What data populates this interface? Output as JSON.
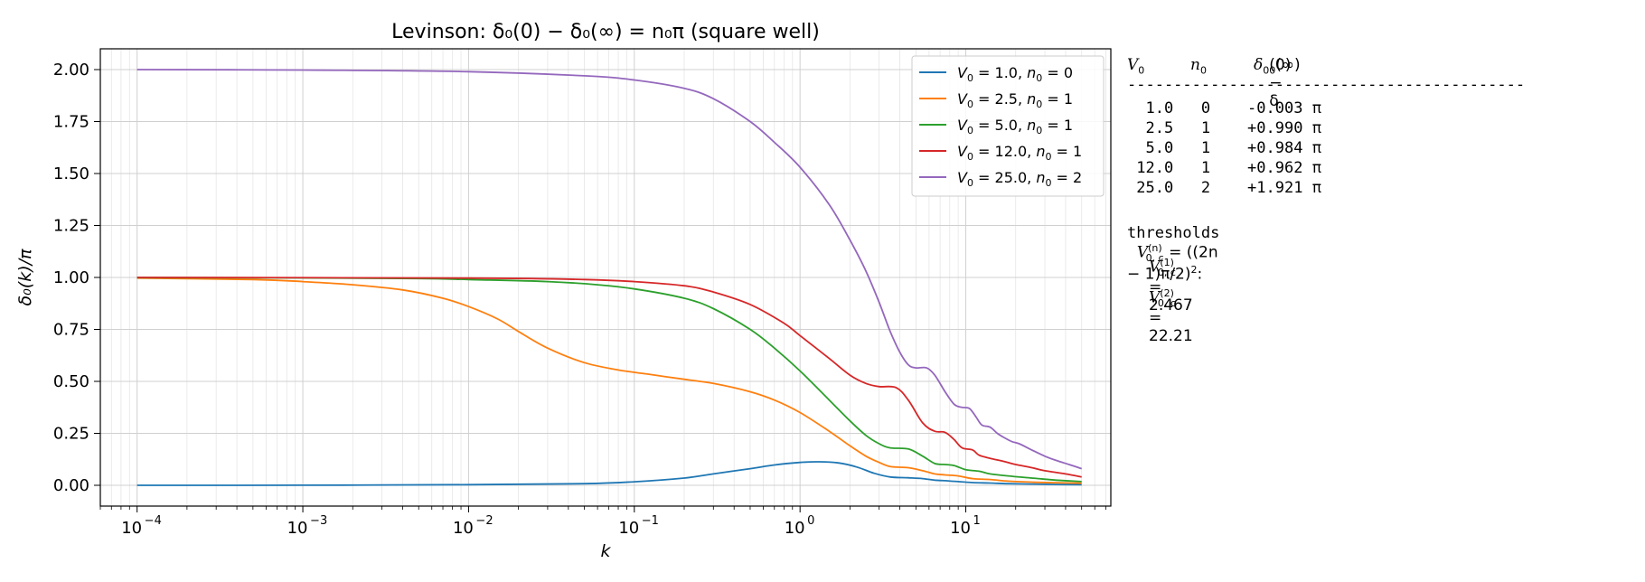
{
  "chart_data": {
    "type": "line",
    "title": "Levinson: δ₀(0) − δ₀(∞) = n₀π  (square well)",
    "xlabel": "k",
    "ylabel": "δ₀(k)/π",
    "xscale": "log",
    "xlim": [
      6e-05,
      75
    ],
    "ylim": [
      -0.1,
      2.1
    ],
    "grid": true,
    "legend_position": "top-right",
    "x_ticks": [
      {
        "value": 0.0001,
        "base": "10",
        "exp": "−4"
      },
      {
        "value": 0.001,
        "base": "10",
        "exp": "−3"
      },
      {
        "value": 0.01,
        "base": "10",
        "exp": "−2"
      },
      {
        "value": 0.1,
        "base": "10",
        "exp": "−1"
      },
      {
        "value": 1,
        "base": "10",
        "exp": "0"
      },
      {
        "value": 10,
        "base": "10",
        "exp": "1"
      }
    ],
    "y_ticks": [
      "0.00",
      "0.25",
      "0.50",
      "0.75",
      "1.00",
      "1.25",
      "1.50",
      "1.75",
      "2.00"
    ],
    "series": [
      {
        "name": "V₀ = 1.0, n₀ = 0",
        "color": "#1f77b4",
        "points": [
          [
            0.0001,
            0
          ],
          [
            0.001,
            0.0005
          ],
          [
            0.01,
            0.003
          ],
          [
            0.05,
            0.008
          ],
          [
            0.1,
            0.017
          ],
          [
            0.2,
            0.035
          ],
          [
            0.3,
            0.055
          ],
          [
            0.5,
            0.08
          ],
          [
            0.7,
            0.098
          ],
          [
            1.0,
            0.11
          ],
          [
            1.3,
            0.113
          ],
          [
            1.7,
            0.108
          ],
          [
            2.2,
            0.088
          ],
          [
            2.8,
            0.058
          ],
          [
            3.5,
            0.04
          ],
          [
            4.5,
            0.036
          ],
          [
            5.5,
            0.032
          ],
          [
            6.5,
            0.025
          ],
          [
            7.5,
            0.022
          ],
          [
            9,
            0.018
          ],
          [
            11,
            0.013
          ],
          [
            14,
            0.011
          ],
          [
            18,
            0.008
          ],
          [
            25,
            0.006
          ],
          [
            35,
            0.004
          ],
          [
            50,
            0.003
          ]
        ]
      },
      {
        "name": "V₀ = 2.5, n₀ = 1",
        "color": "#ff7f0e",
        "points": [
          [
            0.0001,
            0.997
          ],
          [
            0.0005,
            0.99
          ],
          [
            0.001,
            0.98
          ],
          [
            0.002,
            0.965
          ],
          [
            0.004,
            0.94
          ],
          [
            0.007,
            0.9
          ],
          [
            0.01,
            0.86
          ],
          [
            0.015,
            0.8
          ],
          [
            0.02,
            0.74
          ],
          [
            0.03,
            0.66
          ],
          [
            0.05,
            0.59
          ],
          [
            0.08,
            0.555
          ],
          [
            0.12,
            0.535
          ],
          [
            0.2,
            0.51
          ],
          [
            0.3,
            0.49
          ],
          [
            0.5,
            0.45
          ],
          [
            0.7,
            0.41
          ],
          [
            1.0,
            0.35
          ],
          [
            1.5,
            0.26
          ],
          [
            2,
            0.19
          ],
          [
            2.5,
            0.14
          ],
          [
            3,
            0.11
          ],
          [
            3.5,
            0.09
          ],
          [
            4.5,
            0.085
          ],
          [
            5.5,
            0.07
          ],
          [
            6.5,
            0.055
          ],
          [
            7.5,
            0.05
          ],
          [
            9,
            0.045
          ],
          [
            11,
            0.032
          ],
          [
            14,
            0.028
          ],
          [
            18,
            0.02
          ],
          [
            25,
            0.015
          ],
          [
            35,
            0.012
          ],
          [
            50,
            0.01
          ]
        ]
      },
      {
        "name": "V₀ = 5.0, n₀ = 1",
        "color": "#2ca02c",
        "points": [
          [
            0.0001,
            0.999
          ],
          [
            0.001,
            0.998
          ],
          [
            0.005,
            0.995
          ],
          [
            0.01,
            0.99
          ],
          [
            0.03,
            0.98
          ],
          [
            0.06,
            0.965
          ],
          [
            0.1,
            0.945
          ],
          [
            0.2,
            0.9
          ],
          [
            0.3,
            0.85
          ],
          [
            0.5,
            0.75
          ],
          [
            0.7,
            0.66
          ],
          [
            1.0,
            0.55
          ],
          [
            1.5,
            0.41
          ],
          [
            2.0,
            0.31
          ],
          [
            2.5,
            0.24
          ],
          [
            3.0,
            0.2
          ],
          [
            3.5,
            0.18
          ],
          [
            4.5,
            0.175
          ],
          [
            5.5,
            0.14
          ],
          [
            6.5,
            0.105
          ],
          [
            7.5,
            0.1
          ],
          [
            8.5,
            0.095
          ],
          [
            10,
            0.075
          ],
          [
            12,
            0.068
          ],
          [
            14,
            0.055
          ],
          [
            18,
            0.045
          ],
          [
            25,
            0.035
          ],
          [
            35,
            0.025
          ],
          [
            50,
            0.018
          ]
        ]
      },
      {
        "name": "V₀ = 12.0, n₀ = 1",
        "color": "#d62728",
        "points": [
          [
            0.0001,
            1.0
          ],
          [
            0.01,
            0.997
          ],
          [
            0.05,
            0.99
          ],
          [
            0.1,
            0.98
          ],
          [
            0.2,
            0.96
          ],
          [
            0.3,
            0.93
          ],
          [
            0.5,
            0.87
          ],
          [
            0.8,
            0.78
          ],
          [
            1.0,
            0.72
          ],
          [
            1.5,
            0.61
          ],
          [
            2.0,
            0.53
          ],
          [
            2.5,
            0.49
          ],
          [
            3.0,
            0.475
          ],
          [
            3.8,
            0.47
          ],
          [
            4.5,
            0.41
          ],
          [
            5.5,
            0.3
          ],
          [
            6.5,
            0.26
          ],
          [
            7.5,
            0.255
          ],
          [
            8.5,
            0.22
          ],
          [
            9.5,
            0.18
          ],
          [
            11,
            0.17
          ],
          [
            12,
            0.145
          ],
          [
            14,
            0.13
          ],
          [
            17,
            0.115
          ],
          [
            20,
            0.1
          ],
          [
            25,
            0.085
          ],
          [
            30,
            0.07
          ],
          [
            40,
            0.055
          ],
          [
            50,
            0.04
          ]
        ]
      },
      {
        "name": "V₀ = 25.0, n₀ = 2",
        "color": "#9467bd",
        "points": [
          [
            0.0001,
            2.0
          ],
          [
            0.001,
            1.998
          ],
          [
            0.01,
            1.99
          ],
          [
            0.05,
            1.97
          ],
          [
            0.1,
            1.95
          ],
          [
            0.2,
            1.91
          ],
          [
            0.3,
            1.86
          ],
          [
            0.5,
            1.75
          ],
          [
            0.7,
            1.65
          ],
          [
            1.0,
            1.53
          ],
          [
            1.5,
            1.35
          ],
          [
            2.0,
            1.18
          ],
          [
            2.5,
            1.03
          ],
          [
            3.0,
            0.88
          ],
          [
            3.5,
            0.74
          ],
          [
            4.0,
            0.64
          ],
          [
            4.5,
            0.58
          ],
          [
            5.0,
            0.565
          ],
          [
            5.8,
            0.565
          ],
          [
            6.5,
            0.53
          ],
          [
            7.5,
            0.45
          ],
          [
            8.5,
            0.39
          ],
          [
            9.5,
            0.375
          ],
          [
            10.5,
            0.37
          ],
          [
            11.5,
            0.33
          ],
          [
            12.5,
            0.29
          ],
          [
            14,
            0.28
          ],
          [
            15.5,
            0.25
          ],
          [
            17,
            0.23
          ],
          [
            19,
            0.21
          ],
          [
            21,
            0.2
          ],
          [
            25,
            0.17
          ],
          [
            30,
            0.14
          ],
          [
            35,
            0.12
          ],
          [
            42,
            0.1
          ],
          [
            50,
            0.08
          ]
        ]
      }
    ]
  },
  "legend": [
    {
      "v0": "1.0",
      "n0": "0"
    },
    {
      "v0": "2.5",
      "n0": "1"
    },
    {
      "v0": "5.0",
      "n0": "1"
    },
    {
      "v0": "12.0",
      "n0": "1"
    },
    {
      "v0": "25.0",
      "n0": "2"
    }
  ],
  "side_panel": {
    "header": {
      "col1": "V",
      "col2": "n",
      "col3a": "δ",
      "col3b": "(0) − δ",
      "col3c": "(∞)",
      "sub": "0"
    },
    "rule": "-------------------------------------------",
    "rows": [
      "  1.0   0    -0.003 π",
      "  2.5   1    +0.990 π",
      "  5.0   1    +0.984 π",
      " 12.0   1    +0.962 π",
      " 25.0   2    +1.921 π"
    ],
    "thresholds_label": "thresholds",
    "thresholds_formula": "= ((2n − 1)π/2)",
    "thresholds_sup": "(n)",
    "thresholds_sub": "0, c",
    "thresholds_power": "2",
    "thresholds_colon": ":",
    "threshold_values": [
      {
        "sup": "(1)",
        "value": "= 2.467"
      },
      {
        "sup": "(2)",
        "value": "= 22.21"
      }
    ]
  }
}
